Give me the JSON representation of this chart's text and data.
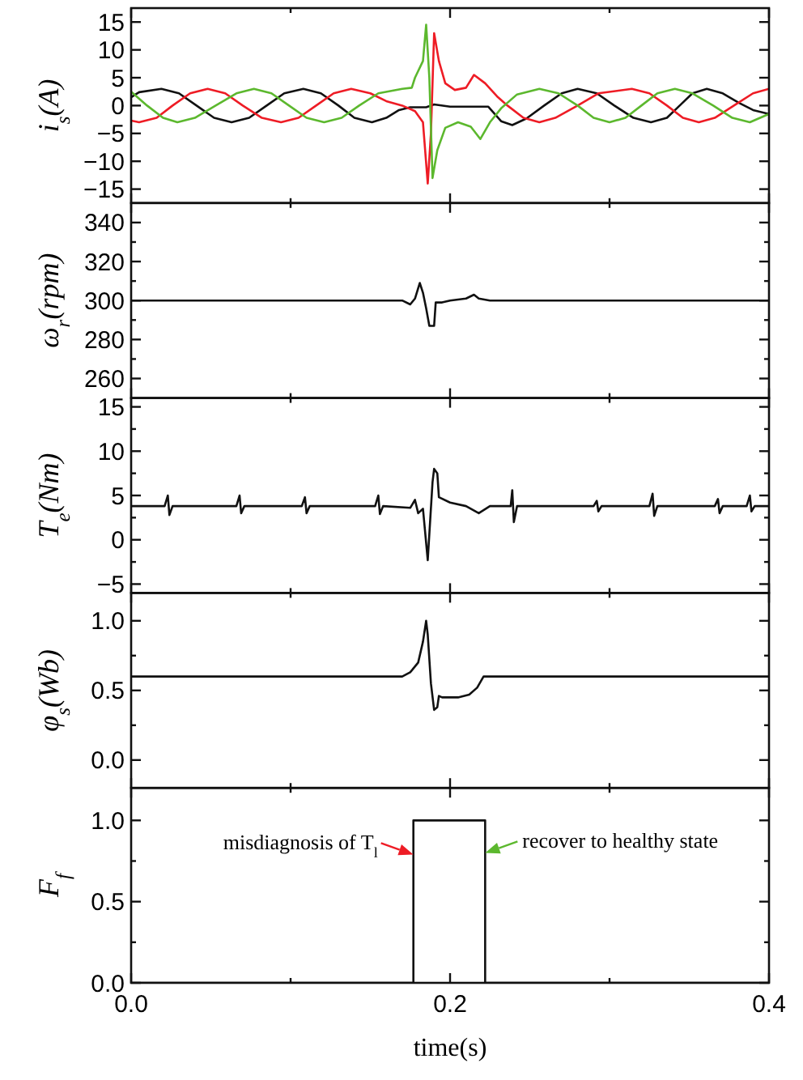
{
  "chart_data": [
    {
      "type": "line",
      "ylabel": "i$_{s}$(A)",
      "xlim": [
        0,
        0.4
      ],
      "ylim": [
        -17.5,
        17.5
      ],
      "tick_labels": "y",
      "grid": false,
      "xticks": [
        0,
        {
          "value": 0.1,
          "label": null
        },
        0.2,
        {
          "value": 0.3,
          "label": null
        },
        0.4
      ],
      "yticks": [
        -15,
        -10,
        -5,
        0,
        5,
        10,
        15
      ],
      "series": [
        {
          "color": "#111111",
          "x": [
            0,
            0.005,
            0.019,
            0.03,
            0.041,
            0.052,
            0.063,
            0.074,
            0.085,
            0.096,
            0.108,
            0.119,
            0.13,
            0.14,
            0.151,
            0.16,
            0.168,
            0.175,
            0.185,
            0.19,
            0.2,
            0.215,
            0.224,
            0.232,
            0.239,
            0.248,
            0.259,
            0.27,
            0.28,
            0.292,
            0.303,
            0.315,
            0.326,
            0.336,
            0.344,
            0.352,
            0.361,
            0.371,
            0.381,
            0.39,
            0.4
          ],
          "values": [
            1.5,
            2.4,
            3,
            2.2,
            0,
            -2.2,
            -3,
            -2.2,
            0,
            2.2,
            3,
            2.2,
            0,
            -2.2,
            -3,
            -2.2,
            -0.8,
            -0.3,
            -0.3,
            0.2,
            -0.2,
            -0.2,
            -0.2,
            -2.8,
            -3.5,
            -2.3,
            0,
            2.2,
            3,
            2.2,
            0,
            -2.2,
            -3,
            -2.2,
            0,
            2.2,
            3,
            2.2,
            0.5,
            -0.8,
            -1.5
          ]
        },
        {
          "color": "#ee1c25",
          "x": [
            0,
            0.005,
            0.016,
            0.026,
            0.037,
            0.048,
            0.059,
            0.07,
            0.082,
            0.094,
            0.105,
            0.116,
            0.127,
            0.138,
            0.15,
            0.16,
            0.17,
            0.178,
            0.183,
            0.186,
            0.188,
            0.19,
            0.193,
            0.197,
            0.203,
            0.21,
            0.215,
            0.222,
            0.23,
            0.236,
            0.246,
            0.256,
            0.266,
            0.28,
            0.293,
            0.314,
            0.325,
            0.336,
            0.346,
            0.356,
            0.366,
            0.378,
            0.39,
            0.4
          ],
          "values": [
            -2.7,
            -3,
            -2.2,
            0,
            2.2,
            3,
            2.2,
            0,
            -2.2,
            -3,
            -2.2,
            0,
            2.2,
            3,
            2.2,
            0.8,
            0,
            -1,
            -3,
            -14,
            -5,
            13,
            8,
            4,
            2.8,
            3.2,
            5.5,
            4,
            1.5,
            0,
            -2.2,
            -3,
            -2.2,
            0,
            2.2,
            3,
            2.2,
            0,
            -2.2,
            -3,
            -2.2,
            0,
            2.2,
            3
          ]
        },
        {
          "color": "#5cb82e",
          "x": [
            0,
            0.01,
            0.02,
            0.029,
            0.04,
            0.053,
            0.066,
            0.077,
            0.088,
            0.099,
            0.11,
            0.121,
            0.132,
            0.143,
            0.155,
            0.17,
            0.176,
            0.178,
            0.183,
            0.185,
            0.187,
            0.189,
            0.192,
            0.197,
            0.205,
            0.213,
            0.219,
            0.225,
            0.232,
            0.242,
            0.256,
            0.268,
            0.28,
            0.29,
            0.3,
            0.31,
            0.32,
            0.33,
            0.341,
            0.352,
            0.365,
            0.377,
            0.388,
            0.4
          ],
          "values": [
            2.5,
            0,
            -2.2,
            -3,
            -2.2,
            0,
            2.2,
            3,
            2.2,
            0,
            -2.2,
            -3,
            -2.2,
            0,
            2.2,
            3,
            3.2,
            5,
            8,
            14.5,
            5,
            -13,
            -8,
            -4,
            -3,
            -3.8,
            -6,
            -3,
            -0.5,
            2,
            3,
            2.2,
            0,
            -2.2,
            -3,
            -2.2,
            0,
            2.2,
            3,
            2.2,
            0,
            -2.2,
            -3,
            -1.5
          ]
        }
      ]
    },
    {
      "type": "line",
      "ylabel": "ω$_{r}$(rpm)",
      "xlim": [
        0,
        0.4
      ],
      "ylim": [
        250,
        350
      ],
      "tick_labels": "y",
      "grid": false,
      "xticks": [
        0,
        {
          "value": 0.1,
          "label": null
        },
        0.2,
        {
          "value": 0.3,
          "label": null
        },
        0.4
      ],
      "yticks": [
        260,
        {
          "value": 270,
          "label": null
        },
        280,
        {
          "value": 290,
          "label": null
        },
        300,
        {
          "value": 310,
          "label": null
        },
        320,
        {
          "value": 330,
          "label": null
        },
        340
      ],
      "series": [
        {
          "color": "#111111",
          "x": [
            0,
            0.1,
            0.17,
            0.175,
            0.178,
            0.181,
            0.183,
            0.185,
            0.187,
            0.19,
            0.191,
            0.195,
            0.2,
            0.21,
            0.215,
            0.218,
            0.225,
            0.3,
            0.4
          ],
          "values": [
            300,
            300,
            300,
            298,
            301,
            309,
            304,
            296,
            287,
            287,
            299,
            299,
            300,
            301,
            303,
            301,
            300,
            300,
            300
          ]
        }
      ]
    },
    {
      "type": "line",
      "ylabel": "T$_{e}$(Nm)",
      "xlim": [
        0,
        0.4
      ],
      "ylim": [
        -6,
        16
      ],
      "tick_labels": "y",
      "grid": false,
      "xticks": [
        0,
        {
          "value": 0.1,
          "label": null
        },
        0.2,
        {
          "value": 0.3,
          "label": null
        },
        0.4
      ],
      "yticks": [
        -5,
        {
          "value": -2.5,
          "label": null
        },
        0,
        {
          "value": 2.5,
          "label": null
        },
        5,
        {
          "value": 7.5,
          "label": null
        },
        10,
        {
          "value": 12.5,
          "label": null
        },
        15
      ],
      "series": [
        {
          "color": "#111111",
          "x": [
            0,
            0.021,
            0.023,
            0.024,
            0.026,
            0.066,
            0.068,
            0.069,
            0.071,
            0.107,
            0.109,
            0.11,
            0.112,
            0.153,
            0.155,
            0.156,
            0.158,
            0.175,
            0.178,
            0.18,
            0.183,
            0.186,
            0.189,
            0.19,
            0.192,
            0.193,
            0.2,
            0.21,
            0.218,
            0.225,
            0.238,
            0.239,
            0.24,
            0.242,
            0.29,
            0.292,
            0.293,
            0.295,
            0.325,
            0.327,
            0.328,
            0.33,
            0.366,
            0.368,
            0.369,
            0.371,
            0.386,
            0.388,
            0.389,
            0.391,
            0.4
          ],
          "values": [
            3.8,
            3.8,
            5,
            2.8,
            3.8,
            3.8,
            5,
            3,
            3.8,
            3.8,
            4.8,
            3,
            3.8,
            3.8,
            5,
            2.9,
            3.8,
            3.6,
            4.5,
            3,
            3.5,
            -2.3,
            6.5,
            8,
            7.5,
            4.8,
            4.2,
            3.8,
            3,
            3.8,
            3.8,
            5.6,
            2,
            3.8,
            3.8,
            4.4,
            3.2,
            3.8,
            3.8,
            5.2,
            2.7,
            3.8,
            3.8,
            4.6,
            3,
            3.8,
            3.8,
            5,
            3.2,
            3.8,
            3.8
          ]
        }
      ]
    },
    {
      "type": "line",
      "ylabel": "φ$_{s}$(Wb)",
      "xlim": [
        0,
        0.4
      ],
      "ylim": [
        -0.2,
        1.2
      ],
      "tick_labels": "y",
      "grid": false,
      "xticks": [
        0,
        {
          "value": 0.1,
          "label": null
        },
        0.2,
        {
          "value": 0.3,
          "label": null
        },
        0.4
      ],
      "yticks": [
        {
          "value": 0,
          "label": "0.0"
        },
        {
          "value": 0.25,
          "label": null
        },
        {
          "value": 0.5,
          "label": "0.5"
        },
        {
          "value": 0.75,
          "label": null
        },
        {
          "value": 1,
          "label": "1.0"
        }
      ],
      "series": [
        {
          "color": "#111111",
          "x": [
            0,
            0.1,
            0.17,
            0.175,
            0.18,
            0.183,
            0.185,
            0.186,
            0.188,
            0.19,
            0.192,
            0.193,
            0.195,
            0.205,
            0.212,
            0.217,
            0.221,
            0.3,
            0.4
          ],
          "values": [
            0.6,
            0.6,
            0.6,
            0.63,
            0.7,
            0.85,
            1.0,
            0.9,
            0.55,
            0.36,
            0.38,
            0.46,
            0.45,
            0.45,
            0.47,
            0.52,
            0.6,
            0.6,
            0.6
          ]
        }
      ]
    },
    {
      "type": "step",
      "ylabel": "F$_{f}$",
      "xlabel": "time(s)",
      "xlim": [
        0,
        0.4
      ],
      "ylim": [
        0,
        1.2
      ],
      "grid": false,
      "xticks": [
        {
          "value": 0,
          "label": "0.0"
        },
        {
          "value": 0.1,
          "label": null
        },
        {
          "value": 0.2,
          "label": "0.2"
        },
        {
          "value": 0.3,
          "label": null
        },
        {
          "value": 0.4,
          "label": "0.4"
        }
      ],
      "yticks": [
        {
          "value": 0,
          "label": "0.0"
        },
        {
          "value": 0.25,
          "label": null
        },
        {
          "value": 0.5,
          "label": "0.5"
        },
        {
          "value": 0.75,
          "label": null
        },
        {
          "value": 1,
          "label": "1.0"
        }
      ],
      "annotations": [
        {
          "text": "misdiagnosis of T$_{l}$",
          "x": 0.177,
          "y": 0.79
        },
        {
          "text": "recover to healthy state",
          "x": 0.222,
          "y": 0.8
        }
      ],
      "series": [
        {
          "color": "#111111",
          "x": [
            0,
            0.177,
            0.222,
            0.4
          ],
          "values": [
            0,
            1,
            0,
            0
          ]
        }
      ]
    }
  ]
}
